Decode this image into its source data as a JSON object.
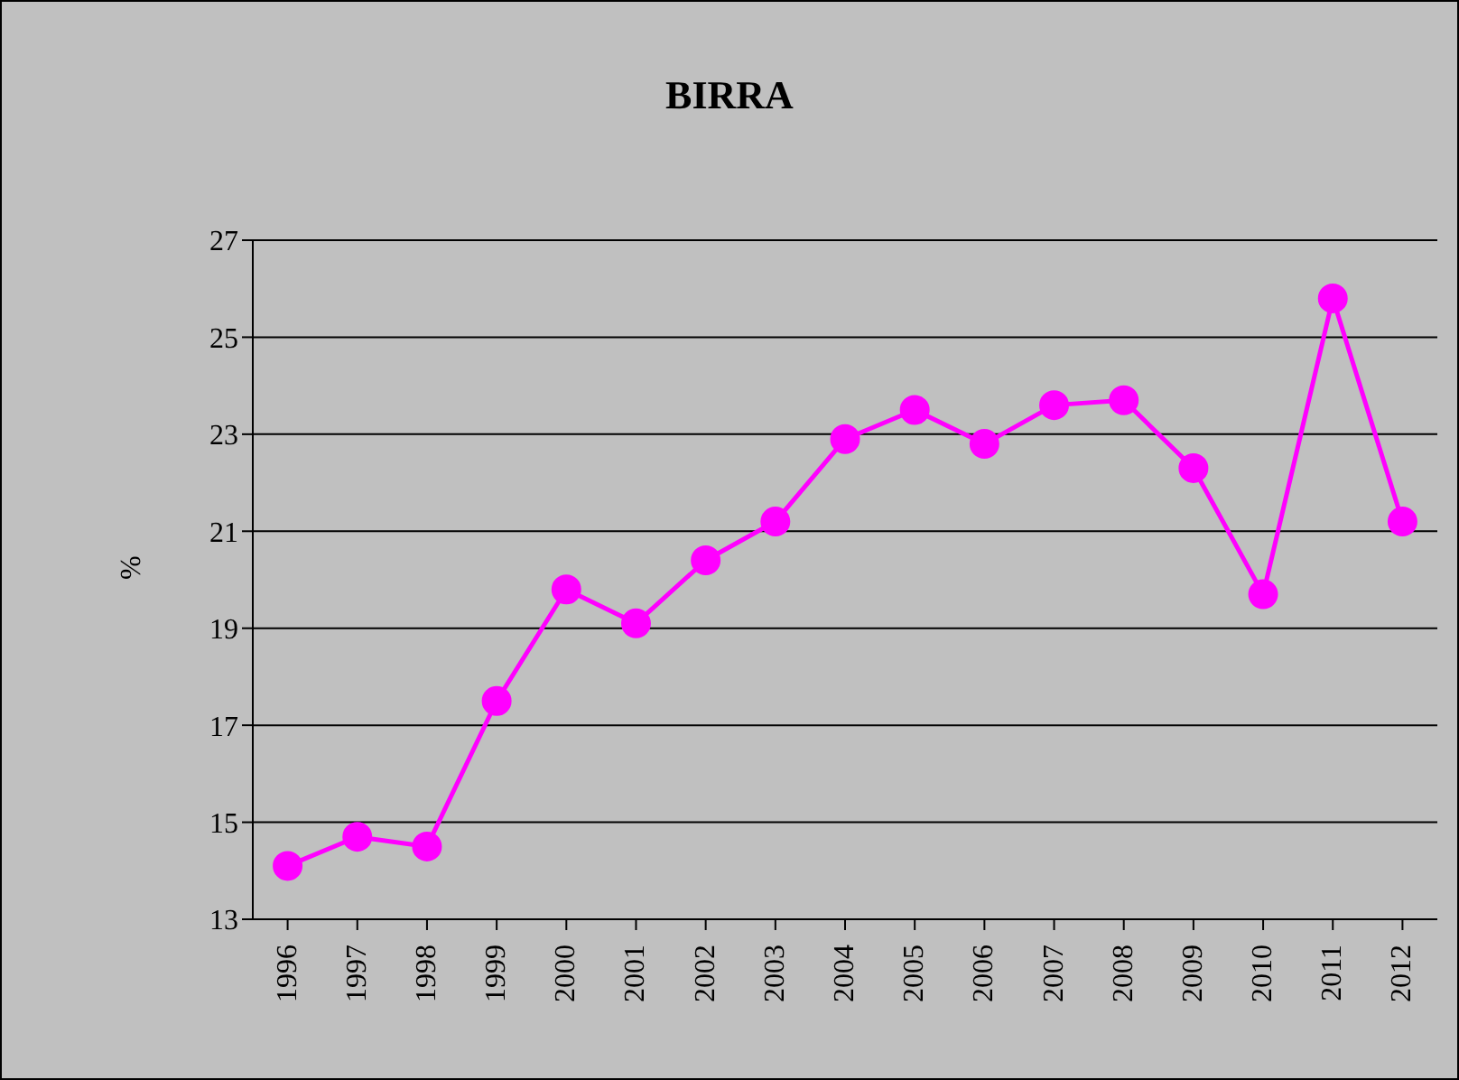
{
  "chart_data": {
    "type": "line",
    "title": "BIRRA",
    "ylabel": "%",
    "categories": [
      "1996",
      "1997",
      "1998",
      "1999",
      "2000",
      "2001",
      "2002",
      "2003",
      "2004",
      "2005",
      "2006",
      "2007",
      "2008",
      "2009",
      "2010",
      "2011",
      "2012"
    ],
    "series": [
      {
        "color": "#ff00ff",
        "values": [
          14.1,
          14.7,
          14.5,
          17.5,
          19.8,
          19.1,
          20.4,
          21.2,
          22.9,
          23.5,
          22.8,
          23.6,
          23.7,
          22.3,
          19.7,
          25.8,
          21.2
        ]
      }
    ],
    "ylim": [
      13,
      27
    ],
    "yticks": [
      13,
      15,
      17,
      19,
      21,
      23,
      25,
      27
    ],
    "grid": "y",
    "marker": "circle",
    "line_style": "solid"
  }
}
